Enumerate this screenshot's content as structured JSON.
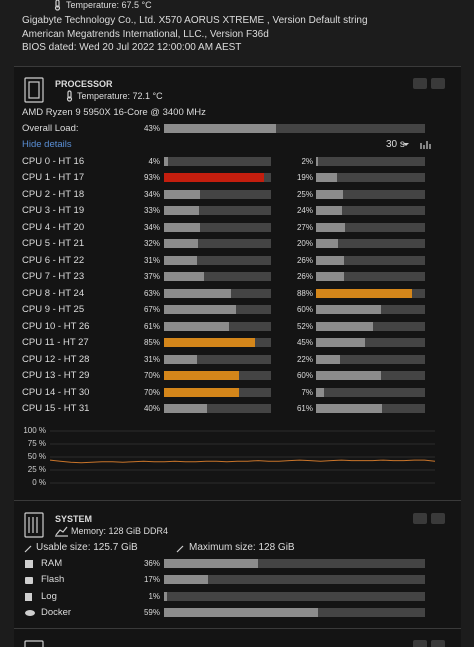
{
  "motherboard": {
    "temperature": "Temperature: 67.5 °C",
    "lines": [
      "Gigabyte Technology Co., Ltd. X570 AORUS XTREME , Version Default string",
      "American Megatrends International, LLC., Version F36d",
      "BIOS dated: Wed 20 Jul 2022 12:00:00 AM AEST"
    ]
  },
  "processor": {
    "title": "PROCESSOR",
    "temperature": "Temperature: 72.1 °C",
    "model": "AMD Ryzen 9 5950X 16-Core @ 3400 MHz",
    "overall_label": "Overall Load:",
    "overall": {
      "value": 43,
      "label": "43%",
      "color": "#8c8c8c"
    },
    "hide_details": "Hide details",
    "interval": "30 s",
    "cores": [
      {
        "label": "CPU 0 - HT 16",
        "load": {
          "value": 4,
          "label": "4%",
          "color": "#8c8c8c"
        },
        "ht": {
          "value": 2,
          "label": "2%",
          "color": "#8c8c8c"
        }
      },
      {
        "label": "CPU 1 - HT 17",
        "load": {
          "value": 93,
          "label": "93%",
          "color": "#c41e0e"
        },
        "ht": {
          "value": 19,
          "label": "19%",
          "color": "#8c8c8c"
        }
      },
      {
        "label": "CPU 2 - HT 18",
        "load": {
          "value": 34,
          "label": "34%",
          "color": "#8c8c8c"
        },
        "ht": {
          "value": 25,
          "label": "25%",
          "color": "#8c8c8c"
        }
      },
      {
        "label": "CPU 3 - HT 19",
        "load": {
          "value": 33,
          "label": "33%",
          "color": "#8c8c8c"
        },
        "ht": {
          "value": 24,
          "label": "24%",
          "color": "#8c8c8c"
        }
      },
      {
        "label": "CPU 4 - HT 20",
        "load": {
          "value": 34,
          "label": "34%",
          "color": "#8c8c8c"
        },
        "ht": {
          "value": 27,
          "label": "27%",
          "color": "#8c8c8c"
        }
      },
      {
        "label": "CPU 5 - HT 21",
        "load": {
          "value": 32,
          "label": "32%",
          "color": "#8c8c8c"
        },
        "ht": {
          "value": 20,
          "label": "20%",
          "color": "#8c8c8c"
        }
      },
      {
        "label": "CPU 6 - HT 22",
        "load": {
          "value": 31,
          "label": "31%",
          "color": "#8c8c8c"
        },
        "ht": {
          "value": 26,
          "label": "26%",
          "color": "#8c8c8c"
        }
      },
      {
        "label": "CPU 7 - HT 23",
        "load": {
          "value": 37,
          "label": "37%",
          "color": "#8c8c8c"
        },
        "ht": {
          "value": 26,
          "label": "26%",
          "color": "#8c8c8c"
        }
      },
      {
        "label": "CPU 8 - HT 24",
        "load": {
          "value": 63,
          "label": "63%",
          "color": "#8c8c8c"
        },
        "ht": {
          "value": 88,
          "label": "88%",
          "color": "#d4861a"
        }
      },
      {
        "label": "CPU 9 - HT 25",
        "load": {
          "value": 67,
          "label": "67%",
          "color": "#8c8c8c"
        },
        "ht": {
          "value": 60,
          "label": "60%",
          "color": "#8c8c8c"
        }
      },
      {
        "label": "CPU 10 - HT 26",
        "load": {
          "value": 61,
          "label": "61%",
          "color": "#8c8c8c"
        },
        "ht": {
          "value": 52,
          "label": "52%",
          "color": "#8c8c8c"
        }
      },
      {
        "label": "CPU 11 - HT 27",
        "load": {
          "value": 85,
          "label": "85%",
          "color": "#d4861a"
        },
        "ht": {
          "value": 45,
          "label": "45%",
          "color": "#8c8c8c"
        }
      },
      {
        "label": "CPU 12 - HT 28",
        "load": {
          "value": 31,
          "label": "31%",
          "color": "#8c8c8c"
        },
        "ht": {
          "value": 22,
          "label": "22%",
          "color": "#8c8c8c"
        }
      },
      {
        "label": "CPU 13 - HT 29",
        "load": {
          "value": 70,
          "label": "70%",
          "color": "#d4861a"
        },
        "ht": {
          "value": 60,
          "label": "60%",
          "color": "#8c8c8c"
        }
      },
      {
        "label": "CPU 14 - HT 30",
        "load": {
          "value": 70,
          "label": "70%",
          "color": "#d4861a"
        },
        "ht": {
          "value": 7,
          "label": "7%",
          "color": "#8c8c8c"
        }
      },
      {
        "label": "CPU 15 - HT 31",
        "load": {
          "value": 40,
          "label": "40%",
          "color": "#8c8c8c"
        },
        "ht": {
          "value": 61,
          "label": "61%",
          "color": "#8c8c8c"
        }
      }
    ],
    "history": {
      "ylim": [
        0,
        100
      ],
      "yticks": [
        {
          "value": 100,
          "label": "100 %"
        },
        {
          "value": 75,
          "label": "75 %"
        },
        {
          "value": 50,
          "label": "50 %"
        },
        {
          "value": 25,
          "label": "25 %"
        },
        {
          "value": 0,
          "label": "0 %"
        }
      ],
      "color": "#c8742a",
      "values": [
        44,
        42,
        40,
        39,
        40,
        41,
        41,
        40,
        41,
        42,
        41,
        41,
        42,
        41,
        41,
        42,
        42,
        41,
        42,
        42,
        43,
        42,
        42,
        43,
        44,
        43,
        42,
        43,
        44,
        43,
        43,
        43,
        44,
        43,
        43,
        44,
        44,
        42
      ]
    }
  },
  "system": {
    "title": "SYSTEM",
    "memory": "Memory: 128 GiB DDR4",
    "usable": "Usable size: 125.7 GiB",
    "maximum": "Maximum size: 128 GiB",
    "rows": [
      {
        "label": "RAM",
        "value": 36,
        "value_label": "36%",
        "color": "#8c8c8c"
      },
      {
        "label": "Flash",
        "value": 17,
        "value_label": "17%",
        "color": "#8c8c8c"
      },
      {
        "label": "Log",
        "value": 1,
        "value_label": "1%",
        "color": "#8c8c8c"
      },
      {
        "label": "Docker",
        "value": 59,
        "value_label": "59%",
        "color": "#8c8c8c"
      }
    ]
  }
}
